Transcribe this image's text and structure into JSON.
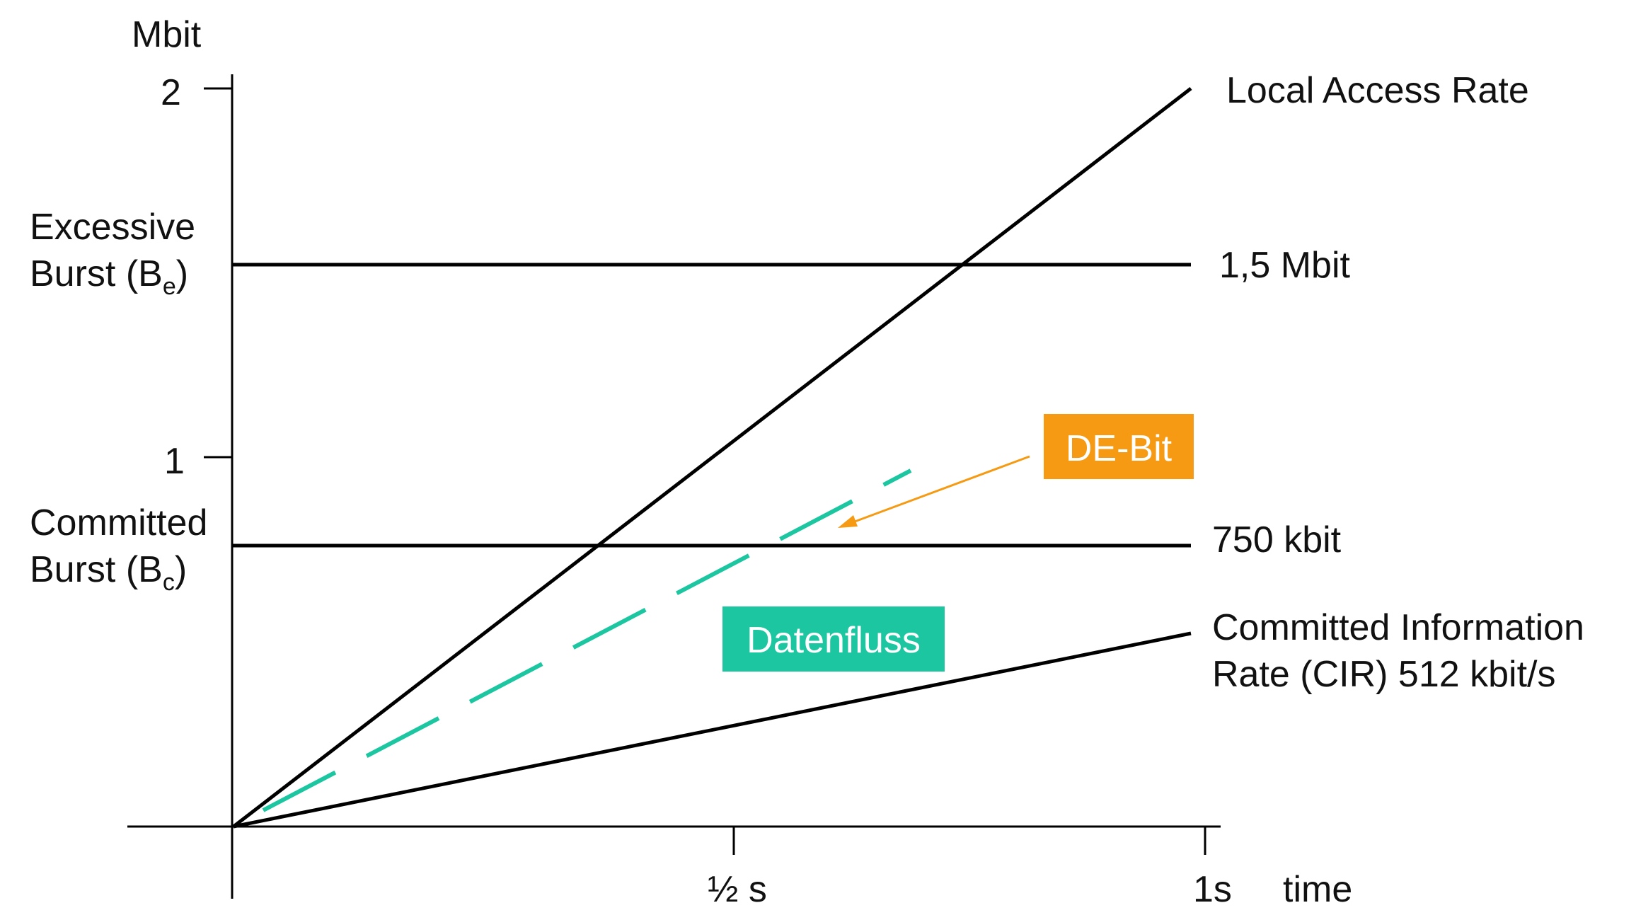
{
  "y_axis": {
    "unit": "Mbit",
    "ticks": [
      "2",
      "1"
    ]
  },
  "x_axis": {
    "label": "time",
    "ticks": [
      "½ s",
      "1s"
    ]
  },
  "left_labels": {
    "excessive_line1": "Excessive",
    "excessive_line2_main": "Burst (B",
    "excessive_sub": "e",
    "excessive_close": ")",
    "committed_line1": "Committed",
    "committed_line2_main": "Burst (B",
    "committed_sub": "c",
    "committed_close": ")"
  },
  "right_labels": {
    "local_access_rate": "Local Access Rate",
    "excessive_level": "1,5 Mbit",
    "committed_level": "750 kbit",
    "cir_line1": "Committed Information",
    "cir_line2": "Rate (CIR) 512 kbit/s"
  },
  "tags": {
    "de_bit": "DE-Bit",
    "datenfluss": "Datenfluss"
  },
  "colors": {
    "line": "#000000",
    "datenfluss": "#1cc6a1",
    "de_bit": "#f59a12"
  }
}
